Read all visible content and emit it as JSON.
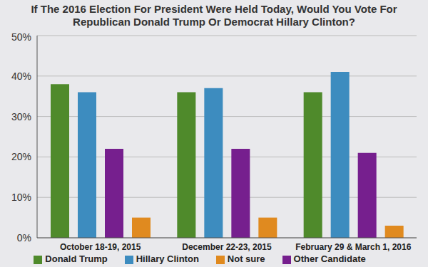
{
  "chart_data": {
    "type": "bar",
    "title": "If The 2016 Election For President Were Held Today, Would You Vote For Republican Donald Trump Or Democrat Hillary Clinton?",
    "categories": [
      "October 18-19, 2015",
      "December 22-23, 2015",
      "February 29 & March 1, 2016"
    ],
    "series": [
      {
        "name": "Donald Trump",
        "color": "#4f8a2b",
        "values": [
          38,
          36,
          36
        ]
      },
      {
        "name": "Hillary Clinton",
        "color": "#3d8cbf",
        "values": [
          36,
          37,
          41
        ]
      },
      {
        "name": "Other Candidate",
        "color": "#761f8e",
        "values": [
          22,
          22,
          21
        ]
      },
      {
        "name": "Not sure",
        "color": "#e08a1f",
        "values": [
          5,
          5,
          3
        ]
      }
    ],
    "ylim": [
      0,
      50
    ],
    "yticks": [
      {
        "value": 0,
        "label": "0%"
      },
      {
        "value": 10,
        "label": "10%"
      },
      {
        "value": 20,
        "label": "20%"
      },
      {
        "value": 30,
        "label": "30%"
      },
      {
        "value": 40,
        "label": "40%"
      },
      {
        "value": 50,
        "label": "50%"
      }
    ],
    "grid": true,
    "legend": "bottom"
  }
}
